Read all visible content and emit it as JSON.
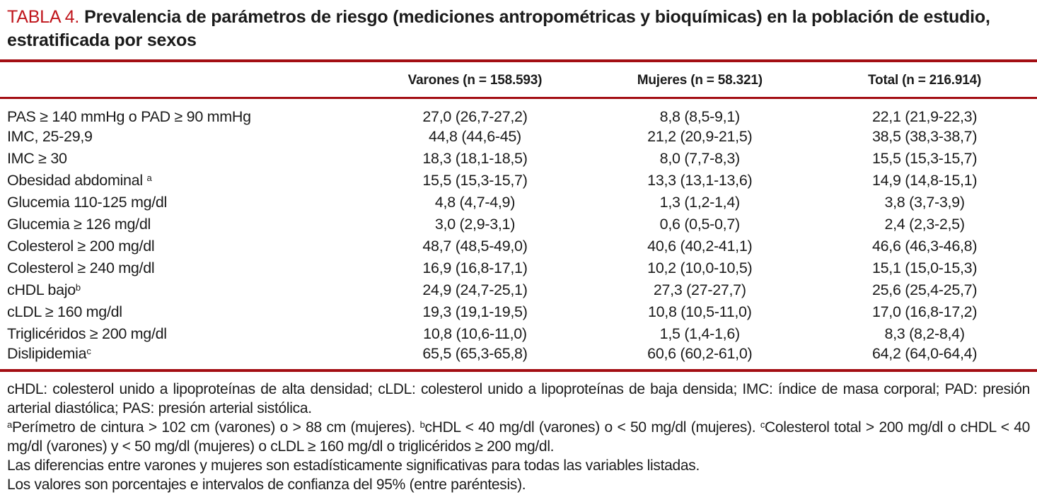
{
  "colors": {
    "accent_red": "#c0161c",
    "rule_red": "#a30e13"
  },
  "table": {
    "label": "TABLA 4.",
    "title": "Prevalencia de parámetros de riesgo (mediciones antropométricas y bioquímicas) en la población de estudio, estratificada por sexos",
    "columns": [
      "Varones (n = 158.593)",
      "Mujeres (n = 58.321)",
      "Total (n = 216.914)"
    ],
    "rows": [
      {
        "label": "PAS ≥ 140 mmHg o PAD ≥ 90 mmHg",
        "sup": "",
        "varones": "27,0 (26,7-27,2)",
        "mujeres": "8,8 (8,5-9,1)",
        "total": "22,1 (21,9-22,3)"
      },
      {
        "label": "IMC, 25-29,9",
        "sup": "",
        "varones": "44,8 (44,6-45)",
        "mujeres": "21,2 (20,9-21,5)",
        "total": "38,5 (38,3-38,7)"
      },
      {
        "label": "IMC ≥ 30",
        "sup": "",
        "varones": "18,3 (18,1-18,5)",
        "mujeres": "8,0 (7,7-8,3)",
        "total": "15,5 (15,3-15,7)"
      },
      {
        "label": "Obesidad abdominal ",
        "sup": "a",
        "varones": "15,5 (15,3-15,7)",
        "mujeres": "13,3 (13,1-13,6)",
        "total": "14,9 (14,8-15,1)"
      },
      {
        "label": "Glucemia 110-125 mg/dl",
        "sup": "",
        "varones": "4,8 (4,7-4,9)",
        "mujeres": "1,3 (1,2-1,4)",
        "total": "3,8 (3,7-3,9)"
      },
      {
        "label": "Glucemia ≥ 126 mg/dl",
        "sup": "",
        "varones": "3,0 (2,9-3,1)",
        "mujeres": "0,6 (0,5-0,7)",
        "total": "2,4 (2,3-2,5)"
      },
      {
        "label": "Colesterol ≥ 200 mg/dl",
        "sup": "",
        "varones": "48,7 (48,5-49,0)",
        "mujeres": "40,6 (40,2-41,1)",
        "total": "46,6 (46,3-46,8)"
      },
      {
        "label": "Colesterol ≥ 240 mg/dl",
        "sup": "",
        "varones": "16,9 (16,8-17,1)",
        "mujeres": "10,2 (10,0-10,5)",
        "total": "15,1 (15,0-15,3)"
      },
      {
        "label": "cHDL bajo",
        "sup": "b",
        "varones": "24,9 (24,7-25,1)",
        "mujeres": "27,3 (27-27,7)",
        "total": "25,6 (25,4-25,7)"
      },
      {
        "label": "cLDL ≥ 160 mg/dl",
        "sup": "",
        "varones": "19,3 (19,1-19,5)",
        "mujeres": "10,8 (10,5-11,0)",
        "total": "17,0 (16,8-17,2)"
      },
      {
        "label": "Triglicéridos ≥ 200 mg/dl",
        "sup": "",
        "varones": "10,8 (10,6-11,0)",
        "mujeres": "1,5 (1,4-1,6)",
        "total": "8,3 (8,2-8,4)"
      },
      {
        "label": "Dislipidemia",
        "sup": "c",
        "varones": "65,5 (65,3-65,8)",
        "mujeres": "60,6 (60,2-61,0)",
        "total": "64,2 (64,0-64,4)"
      }
    ],
    "footnotes": [
      [
        {
          "sup": "",
          "text": "cHDL: colesterol unido a lipoproteínas de alta densidad; cLDL: colesterol unido a lipoproteínas de baja densida; IMC: índice de masa corporal; PAD: presión arterial diastólica; PAS: presión arterial sistólica."
        }
      ],
      [
        {
          "sup": "a",
          "text": "Perímetro de cintura > 102 cm (varones) o > 88 cm (mujeres). "
        },
        {
          "sup": "b",
          "text": "cHDL < 40 mg/dl (varones) o < 50 mg/dl (mujeres). "
        },
        {
          "sup": "c",
          "text": "Colesterol total > 200 mg/dl o cHDL < 40 mg/dl (varones) y < 50 mg/dl (mujeres) o cLDL ≥ 160 mg/dl o triglicéridos ≥ 200 mg/dl."
        }
      ],
      [
        {
          "sup": "",
          "text": "Las diferencias entre varones y mujeres son estadísticamente significativas para todas las variables listadas."
        }
      ],
      [
        {
          "sup": "",
          "text": "Los valores son porcentajes e intervalos de confianza del 95% (entre paréntesis)."
        }
      ]
    ]
  }
}
